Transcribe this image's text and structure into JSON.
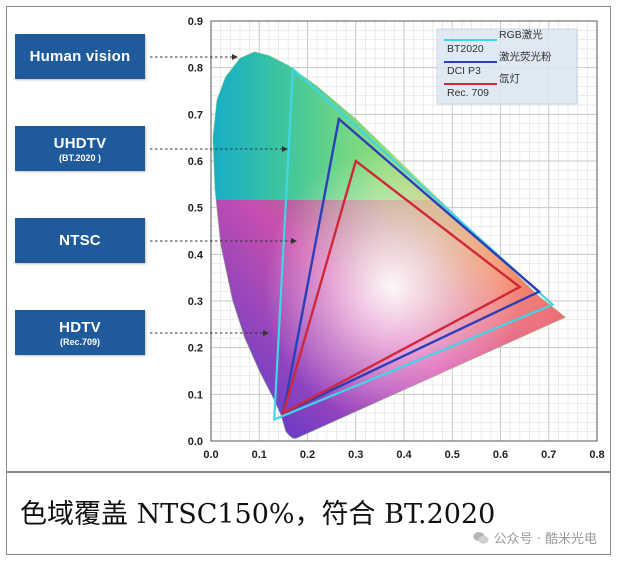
{
  "labels": {
    "human_vision": "Human vision",
    "uhdtv": "UHDTV",
    "uhdtv_sub": "(BT.2020 )",
    "ntsc": "NTSC",
    "hdtv": "HDTV",
    "hdtv_sub": "(Rec.709)"
  },
  "legend": [
    {
      "line": "RGB激光",
      "name": "BT2020",
      "color": "#3fd6e6"
    },
    {
      "line": "激光荧光粉",
      "name": "DCI P3",
      "color": "#2b3fb8"
    },
    {
      "line": "氙灯",
      "name": "Rec. 709",
      "color": "#d0283a"
    }
  ],
  "axes": {
    "x_ticks": [
      "0.0",
      "0.1",
      "0.2",
      "0.3",
      "0.4",
      "0.5",
      "0.6",
      "0.7",
      "0.8"
    ],
    "y_ticks": [
      "0.0",
      "0.1",
      "0.2",
      "0.3",
      "0.4",
      "0.5",
      "0.6",
      "0.7",
      "0.8",
      "0.9"
    ],
    "xlim": [
      0,
      0.8
    ],
    "ylim": [
      0,
      0.9
    ]
  },
  "gamuts": {
    "bt2020": [
      [
        0.708,
        0.292
      ],
      [
        0.17,
        0.797
      ],
      [
        0.131,
        0.046
      ]
    ],
    "dci_p3": [
      [
        0.68,
        0.32
      ],
      [
        0.265,
        0.69
      ],
      [
        0.15,
        0.06
      ]
    ],
    "rec709": [
      [
        0.64,
        0.33
      ],
      [
        0.3,
        0.6
      ],
      [
        0.15,
        0.06
      ]
    ]
  },
  "caption": "色域覆盖 NTSC150%，符合 BT.2020",
  "watermark": "公众号 · 酷米光电"
}
